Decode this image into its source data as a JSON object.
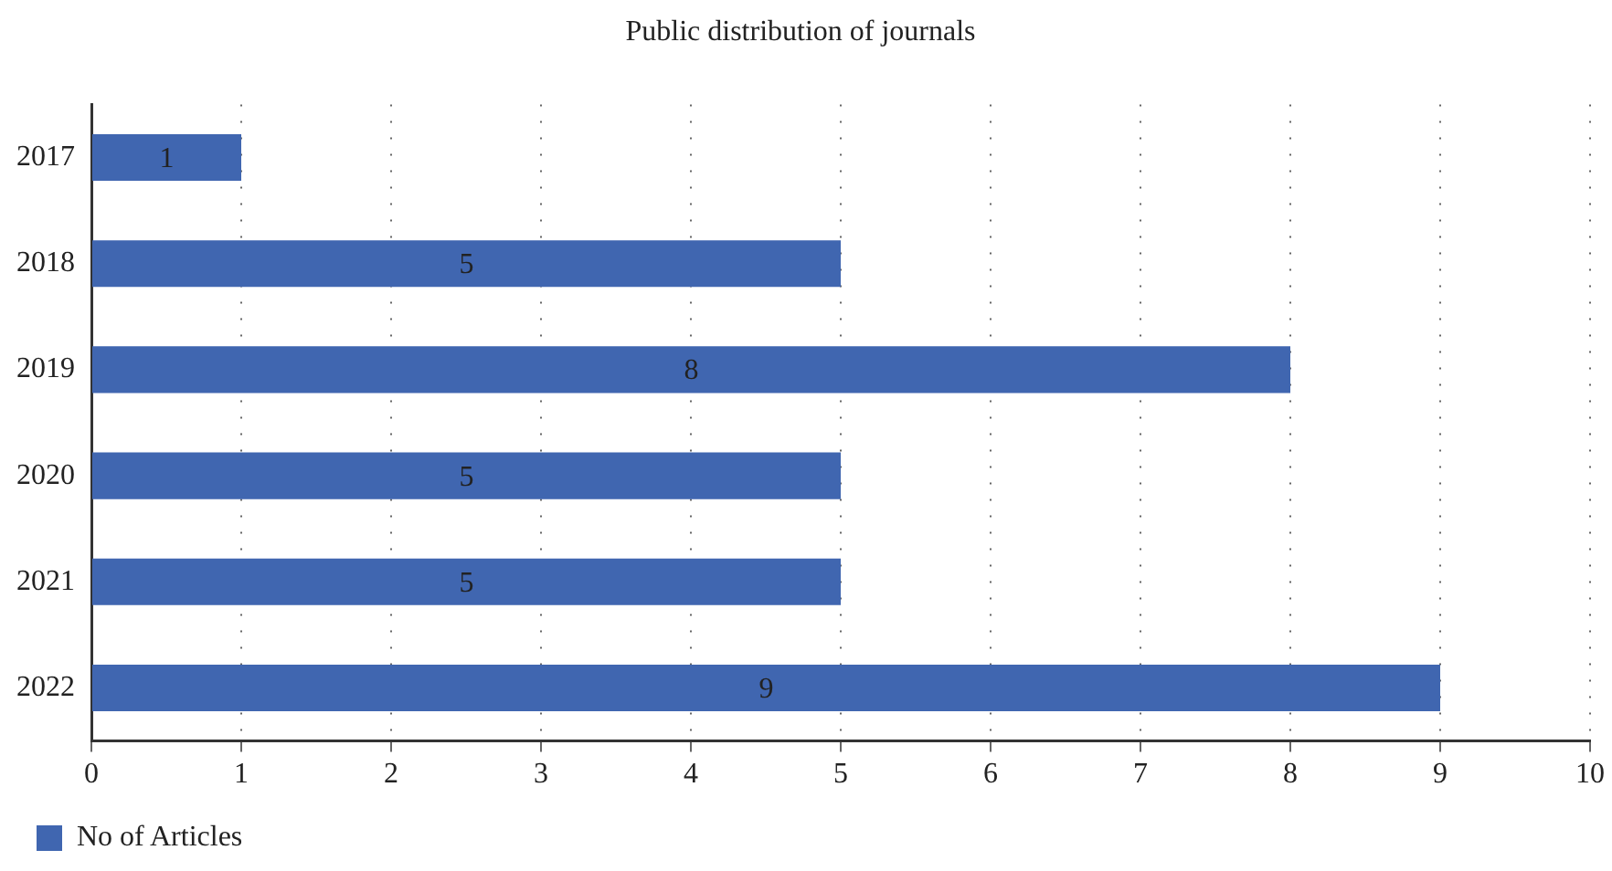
{
  "chart_data": {
    "type": "bar",
    "orientation": "horizontal",
    "title": "Public distribution of journals",
    "categories": [
      "2017",
      "2018",
      "2019",
      "2020",
      "2021",
      "2022"
    ],
    "series": [
      {
        "name": "No of Articles",
        "color": "#4066b0",
        "values": [
          1,
          5,
          8,
          5,
          5,
          9
        ]
      }
    ],
    "xlim": [
      0,
      10
    ],
    "xticks": [
      0,
      1,
      2,
      3,
      4,
      5,
      6,
      7,
      8,
      9,
      10
    ],
    "grid": "x",
    "legend": "bottom left",
    "data_labels": true
  }
}
